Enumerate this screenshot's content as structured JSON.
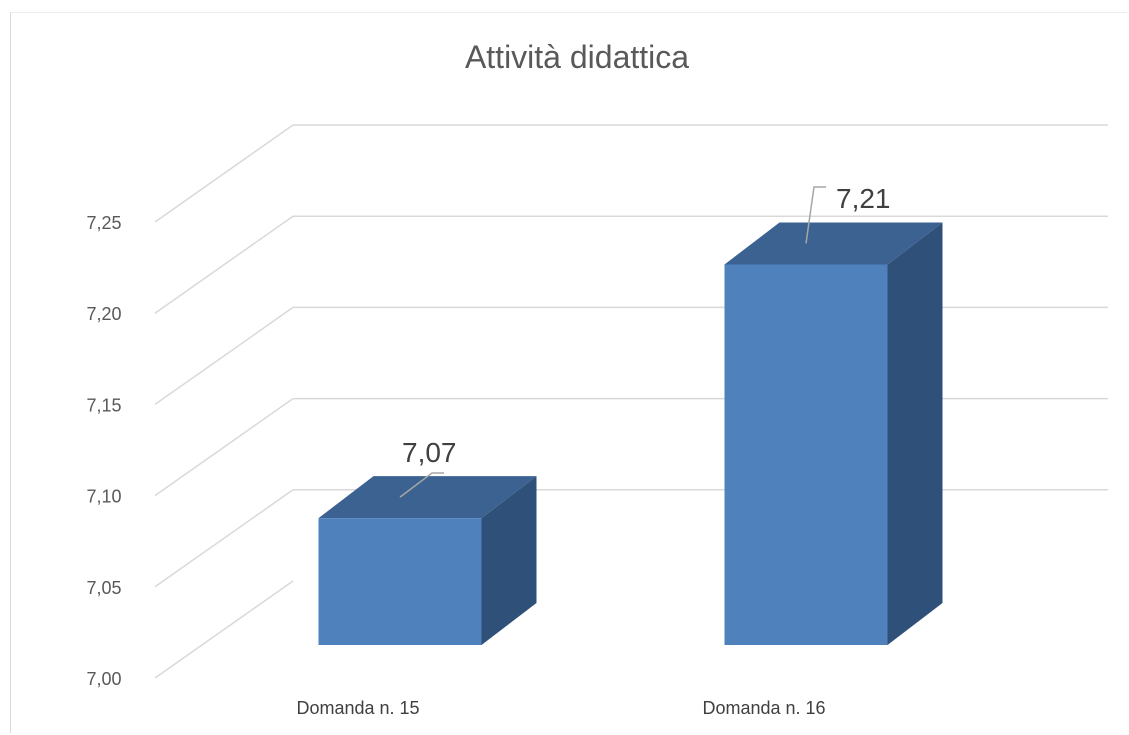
{
  "chart_data": {
    "type": "bar",
    "title": "Attività didattica",
    "xlabel": "",
    "ylabel": "",
    "categories": [
      "Domanda n. 15",
      "Domanda n. 16"
    ],
    "series": [
      {
        "values": [
          7.07,
          7.21
        ],
        "labels": [
          "7,07",
          "7,21"
        ]
      }
    ],
    "ylim": [
      7.0,
      7.25
    ],
    "yticks": [
      7.0,
      7.05,
      7.1,
      7.15,
      7.2,
      7.25
    ],
    "ytick_labels": [
      "7,00",
      "7,05",
      "7,10",
      "7,15",
      "7,20",
      "7,25"
    ],
    "grid": true,
    "legend": "none",
    "three_d": true,
    "colors": {
      "bar_front": "#4f81bd",
      "bar_side": "#2f5079",
      "bar_top": "#3b6291",
      "grid": "#d9d9d9"
    }
  }
}
